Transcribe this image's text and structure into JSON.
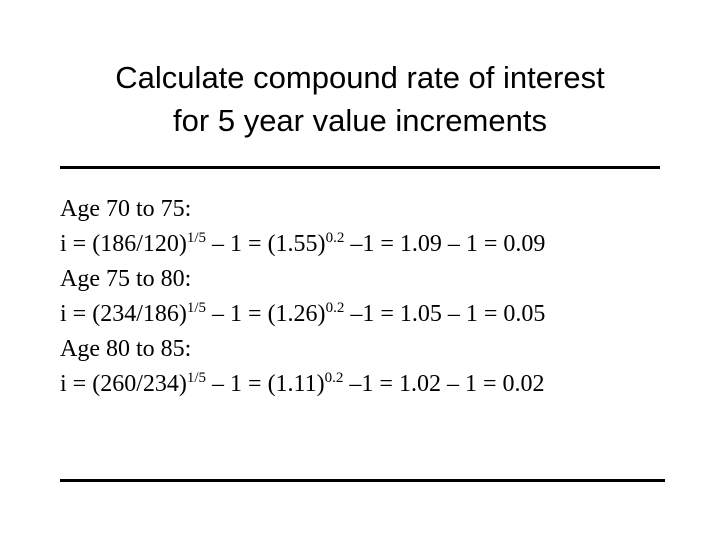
{
  "title": [
    "Calculate compound rate of interest",
    "for 5 year value increments"
  ],
  "sections": [
    {
      "heading": "Age 70 to 75:",
      "formula": [
        "i = (186/120)",
        "1/5",
        " – 1 = (1.55)",
        "0.2",
        " –1 = 1.09 – 1 = 0.09"
      ]
    },
    {
      "heading": "Age 75 to 80:",
      "formula": [
        "i = (234/186)",
        "1/5",
        " – 1 = (1.26)",
        "0.2",
        " –1 = 1.05 – 1 = 0.05"
      ]
    },
    {
      "heading": "Age 80 to 85:",
      "formula": [
        "i = (260/234)",
        "1/5",
        " – 1 = (1.11)",
        "0.2",
        " –1 = 1.02 – 1 = 0.02"
      ]
    }
  ]
}
